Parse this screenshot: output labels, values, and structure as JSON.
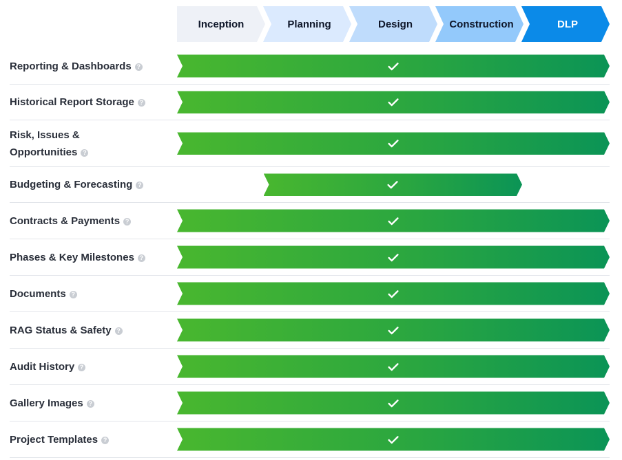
{
  "phases": [
    "Inception",
    "Planning",
    "Design",
    "Construction",
    "DLP"
  ],
  "help_glyph": "?",
  "check_icon": "checkmark-icon",
  "colors": {
    "bar_start": "#49b72f",
    "bar_end": "#0b9456",
    "phase_active": "#0b8ae8"
  },
  "features": [
    {
      "label": "Reporting & Dashboards",
      "start_phase": "Inception",
      "end_phase": "DLP",
      "available": true
    },
    {
      "label": "Historical Report Storage",
      "start_phase": "Inception",
      "end_phase": "DLP",
      "available": true
    },
    {
      "label": "Risk, Issues & Opportunities",
      "start_phase": "Inception",
      "end_phase": "DLP",
      "available": true
    },
    {
      "label": "Budgeting & Forecasting",
      "start_phase": "Planning",
      "end_phase": "Construction",
      "available": true
    },
    {
      "label": "Contracts & Payments",
      "start_phase": "Inception",
      "end_phase": "DLP",
      "available": true
    },
    {
      "label": "Phases & Key Milestones",
      "start_phase": "Inception",
      "end_phase": "DLP",
      "available": true
    },
    {
      "label": "Documents",
      "start_phase": "Inception",
      "end_phase": "DLP",
      "available": true
    },
    {
      "label": "RAG Status & Safety",
      "start_phase": "Inception",
      "end_phase": "DLP",
      "available": true
    },
    {
      "label": "Audit History",
      "start_phase": "Inception",
      "end_phase": "DLP",
      "available": true
    },
    {
      "label": "Gallery Images",
      "start_phase": "Inception",
      "end_phase": "DLP",
      "available": true
    },
    {
      "label": "Project Templates",
      "start_phase": "Inception",
      "end_phase": "DLP",
      "available": true
    }
  ]
}
